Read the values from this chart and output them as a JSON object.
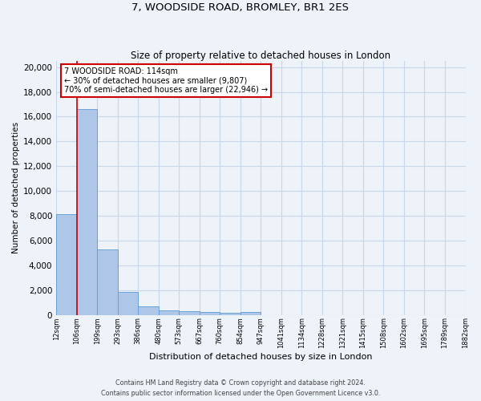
{
  "title": "7, WOODSIDE ROAD, BROMLEY, BR1 2ES",
  "subtitle": "Size of property relative to detached houses in London",
  "xlabel": "Distribution of detached houses by size in London",
  "ylabel": "Number of detached properties",
  "annotation_title": "7 WOODSIDE ROAD: 114sqm",
  "annotation_line1": "← 30% of detached houses are smaller (9,807)",
  "annotation_line2": "70% of semi-detached houses are larger (22,946) →",
  "footer_line1": "Contains HM Land Registry data © Crown copyright and database right 2024.",
  "footer_line2": "Contains public sector information licensed under the Open Government Licence v3.0.",
  "bin_labels": [
    "12sqm",
    "106sqm",
    "199sqm",
    "293sqm",
    "386sqm",
    "480sqm",
    "573sqm",
    "667sqm",
    "760sqm",
    "854sqm",
    "947sqm",
    "1041sqm",
    "1134sqm",
    "1228sqm",
    "1321sqm",
    "1415sqm",
    "1508sqm",
    "1602sqm",
    "1695sqm",
    "1789sqm",
    "1882sqm"
  ],
  "bar_heights": [
    8100,
    16600,
    5300,
    1850,
    700,
    350,
    270,
    210,
    160,
    200,
    0,
    0,
    0,
    0,
    0,
    0,
    0,
    0,
    0,
    0
  ],
  "bar_color": "#aec6e8",
  "bar_edge_color": "#5b9bd5",
  "vline_color": "#cc0000",
  "vline_bin": 1,
  "annotation_box_color": "#ffffff",
  "annotation_box_edge": "#cc0000",
  "grid_color": "#c8d8ea",
  "background_color": "#eef2f9",
  "ylim": [
    0,
    20500
  ],
  "yticks": [
    0,
    2000,
    4000,
    6000,
    8000,
    10000,
    12000,
    14000,
    16000,
    18000,
    20000
  ],
  "num_bins": 20
}
